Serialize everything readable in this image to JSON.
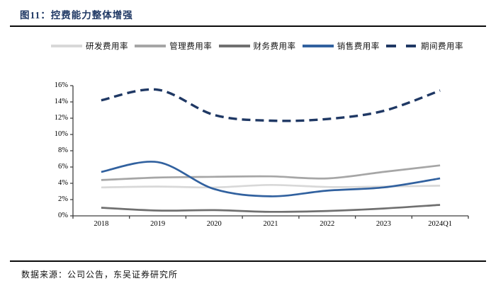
{
  "figure": {
    "title": "图11：控费能力整体增强",
    "source": "数据来源：公司公告，东吴证券研究所"
  },
  "colors": {
    "title_navy": "#1F3864",
    "rule_dark": "#0b0b0b",
    "axis": "#3f3f3f",
    "label_text": "#000000"
  },
  "chart_data": {
    "type": "line",
    "categories": [
      "2018",
      "2019",
      "2020",
      "2021",
      "2022",
      "2023",
      "2024Q1"
    ],
    "series": [
      {
        "name": "研发费用率",
        "key": "rd-expense-ratio",
        "color": "#D8D8D8",
        "style": "solid",
        "values": [
          3.5,
          3.6,
          3.5,
          3.8,
          3.55,
          3.6,
          3.7
        ]
      },
      {
        "name": "管理费用率",
        "key": "admin-expense-ratio",
        "color": "#A6A6A6",
        "style": "solid",
        "values": [
          4.4,
          4.7,
          4.8,
          4.85,
          4.6,
          5.4,
          6.2
        ]
      },
      {
        "name": "财务费用率",
        "key": "finance-expense-ratio",
        "color": "#707070",
        "style": "solid",
        "values": [
          1.0,
          0.65,
          0.7,
          0.5,
          0.6,
          0.9,
          1.35
        ]
      },
      {
        "name": "销售费用率",
        "key": "selling-expense-ratio",
        "color": "#31619F",
        "style": "solid",
        "values": [
          5.4,
          6.6,
          3.3,
          2.4,
          3.1,
          3.5,
          4.6
        ]
      },
      {
        "name": "期间费用率",
        "key": "period-expense-ratio",
        "color": "#1F3864",
        "style": "dashed",
        "values": [
          14.2,
          15.5,
          12.4,
          11.7,
          11.9,
          12.9,
          15.4
        ]
      }
    ],
    "ylim": [
      0,
      16
    ],
    "y_tick_step": 2,
    "y_ticks": [
      "0%",
      "2%",
      "4%",
      "6%",
      "8%",
      "10%",
      "12%",
      "14%",
      "16%"
    ],
    "legend_position": "top",
    "grid": false,
    "title": "图11：控费能力整体增强",
    "xlabel": "",
    "ylabel": ""
  }
}
